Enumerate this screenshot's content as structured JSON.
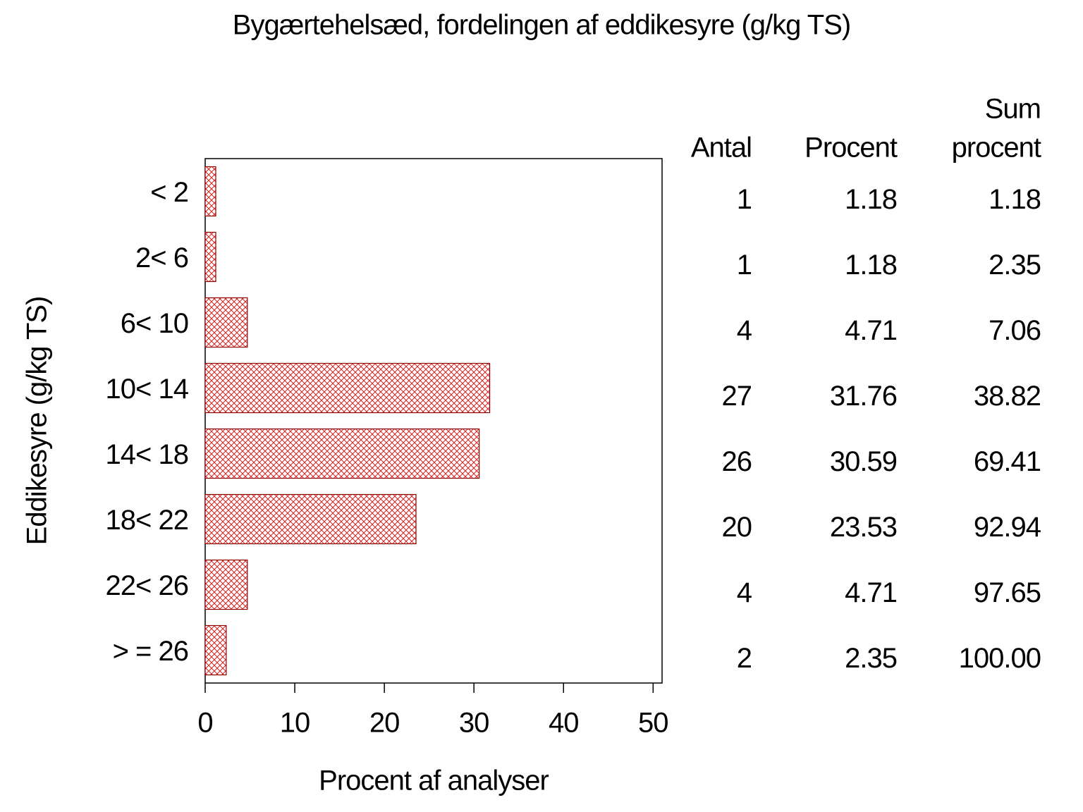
{
  "chart_data": {
    "type": "hbar",
    "title": "Bygærtehelsæd, fordelingen af eddikesyre (g/kg TS)",
    "xlabel": "Procent af analyser",
    "ylabel": "Eddikesyre (g/kg TS)",
    "categories": [
      "< 2",
      "2< 6",
      "6< 10",
      "10< 14",
      "14< 18",
      "18< 22",
      "22< 26",
      "> = 26"
    ],
    "values": [
      1.18,
      1.18,
      4.71,
      31.76,
      30.59,
      23.53,
      4.71,
      2.35
    ],
    "color": "#e02020",
    "xlim": [
      0,
      51
    ],
    "xticks": [
      0,
      10,
      20,
      30,
      40,
      50
    ],
    "table": {
      "headers": [
        "Antal",
        "Procent",
        [
          "Sum",
          "procent"
        ]
      ],
      "counts": [
        1,
        1,
        4,
        27,
        26,
        20,
        4,
        2
      ],
      "cumulative": [
        "1.18",
        "2.35",
        "7.06",
        "38.82",
        "69.41",
        "92.94",
        "97.65",
        "100.00"
      ]
    }
  }
}
